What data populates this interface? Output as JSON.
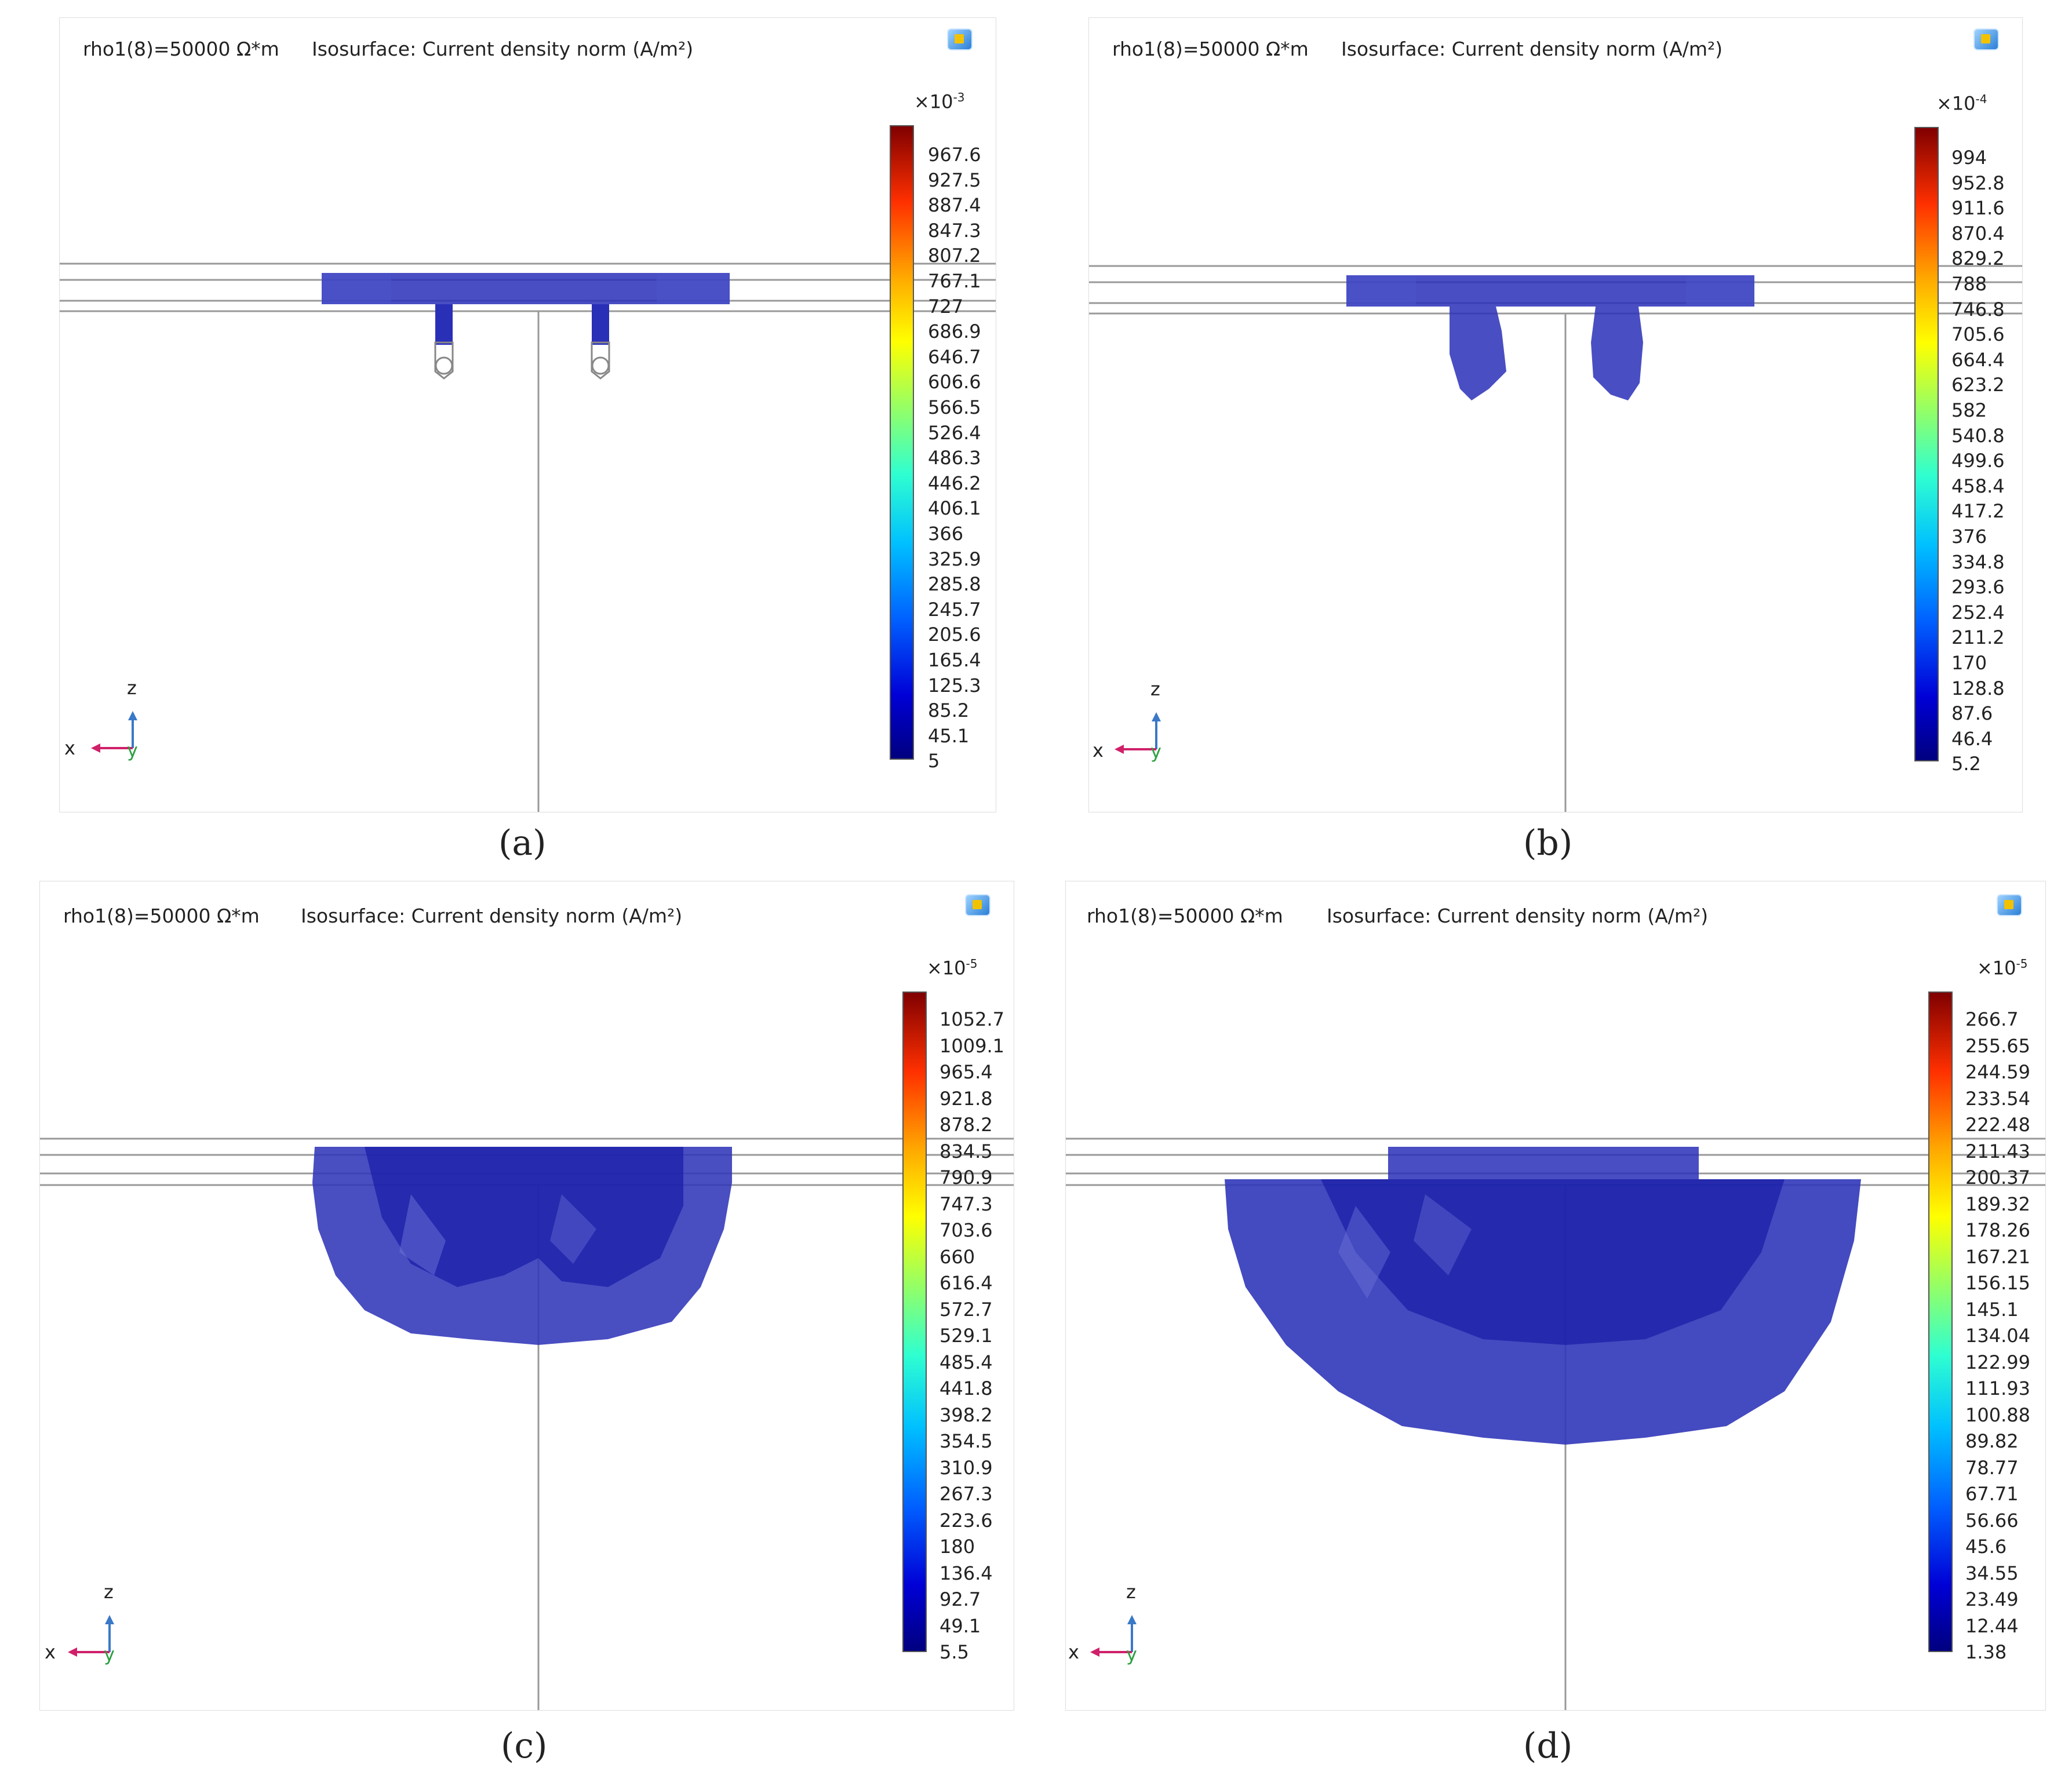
{
  "panels": [
    {
      "id": "a",
      "caption": "(a)",
      "parameter_label": "rho1(8)=50000 Ω*m",
      "plot_title": "Isosurface: Current density norm (A/m²)",
      "colorbar": {
        "multiplier": "×10",
        "exponent": "-3",
        "ticks": [
          "967.6",
          "927.5",
          "887.4",
          "847.3",
          "807.2",
          "767.1",
          "727",
          "686.9",
          "646.7",
          "606.6",
          "566.5",
          "526.4",
          "486.3",
          "446.2",
          "406.1",
          "366",
          "325.9",
          "285.8",
          "245.7",
          "205.6",
          "165.4",
          "125.3",
          "85.2",
          "45.1",
          "5"
        ]
      },
      "axes": {
        "z": "z",
        "x": "x",
        "y": "y"
      }
    },
    {
      "id": "b",
      "caption": "(b)",
      "parameter_label": "rho1(8)=50000 Ω*m",
      "plot_title": "Isosurface: Current density norm (A/m²)",
      "colorbar": {
        "multiplier": "×10",
        "exponent": "-4",
        "ticks": [
          "994",
          "952.8",
          "911.6",
          "870.4",
          "829.2",
          "788",
          "746.8",
          "705.6",
          "664.4",
          "623.2",
          "582",
          "540.8",
          "499.6",
          "458.4",
          "417.2",
          "376",
          "334.8",
          "293.6",
          "252.4",
          "211.2",
          "170",
          "128.8",
          "87.6",
          "46.4",
          "5.2"
        ]
      },
      "axes": {
        "z": "z",
        "x": "x",
        "y": "y"
      }
    },
    {
      "id": "c",
      "caption": "(c)",
      "parameter_label": "rho1(8)=50000 Ω*m",
      "plot_title": "Isosurface: Current density norm (A/m²)",
      "colorbar": {
        "multiplier": "×10",
        "exponent": "-5",
        "ticks": [
          "1052.7",
          "1009.1",
          "965.4",
          "921.8",
          "878.2",
          "834.5",
          "790.9",
          "747.3",
          "703.6",
          "660",
          "616.4",
          "572.7",
          "529.1",
          "485.4",
          "441.8",
          "398.2",
          "354.5",
          "310.9",
          "267.3",
          "223.6",
          "180",
          "136.4",
          "92.7",
          "49.1",
          "5.5"
        ]
      },
      "axes": {
        "z": "z",
        "x": "x",
        "y": "y"
      }
    },
    {
      "id": "d",
      "caption": "(d)",
      "parameter_label": "rho1(8)=50000 Ω*m",
      "plot_title": "Isosurface: Current density norm (A/m²)",
      "colorbar": {
        "multiplier": "×10",
        "exponent": "-5",
        "ticks": [
          "266.7",
          "255.65",
          "244.59",
          "233.54",
          "222.48",
          "211.43",
          "200.37",
          "189.32",
          "178.26",
          "167.21",
          "156.15",
          "145.1",
          "134.04",
          "122.99",
          "111.93",
          "100.88",
          "89.82",
          "78.77",
          "67.71",
          "56.66",
          "45.6",
          "34.55",
          "23.49",
          "12.44",
          "1.38"
        ]
      },
      "axes": {
        "z": "z",
        "x": "x",
        "y": "y"
      }
    }
  ],
  "colors": {
    "isosurface": "#2a2fb8",
    "isosurface_light": "#5a62d0",
    "colorbar_low": "#00007f",
    "colorbar_high": "#800000",
    "axis_x": "#d0206a",
    "axis_z": "#3a78c8",
    "axis_y": "#2aa040"
  }
}
